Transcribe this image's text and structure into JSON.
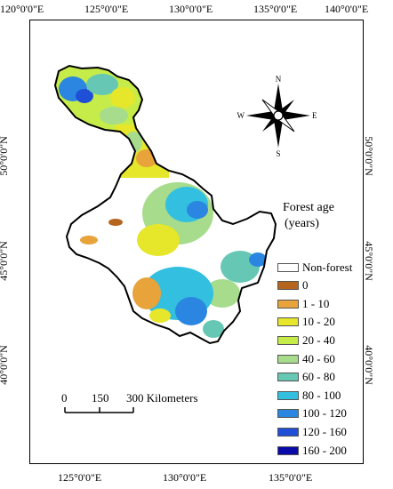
{
  "map": {
    "lon_ticks": [
      "120°0'0\"E",
      "125°0'0\"E",
      "130°0'0\"E",
      "135°0'0\"E",
      "140°0'0\"E"
    ],
    "lon_ticks_bottom": [
      "125°0'0\"E",
      "130°0'0\"E",
      "135°0'0\"E"
    ],
    "lat_ticks": [
      "50°0'0\"N",
      "45°0'0\"N",
      "40°0'0\"N"
    ],
    "north_arrow": {
      "n": "N",
      "s": "S",
      "e": "E",
      "w": "W"
    },
    "legend": {
      "title_line1": "Forest age",
      "title_line2": "(years)",
      "items": [
        {
          "label": "Non-forest",
          "color": "#ffffff"
        },
        {
          "label": "0",
          "color": "#b5651d"
        },
        {
          "label": "1 - 10",
          "color": "#e8a33a"
        },
        {
          "label": "10 - 20",
          "color": "#e6e62a"
        },
        {
          "label": "20 - 40",
          "color": "#c6ec4a"
        },
        {
          "label": "40 - 60",
          "color": "#a6dc8c"
        },
        {
          "label": "60 - 80",
          "color": "#66c8b4"
        },
        {
          "label": "80 - 100",
          "color": "#33c0e0"
        },
        {
          "label": "100 - 120",
          "color": "#2a86e0"
        },
        {
          "label": "120 - 160",
          "color": "#1f4fd6"
        },
        {
          "label": "160 - 200",
          "color": "#0a0aa8"
        }
      ]
    },
    "scale_bar": {
      "labels": [
        "0",
        "150",
        "300 Kilometers"
      ]
    }
  }
}
